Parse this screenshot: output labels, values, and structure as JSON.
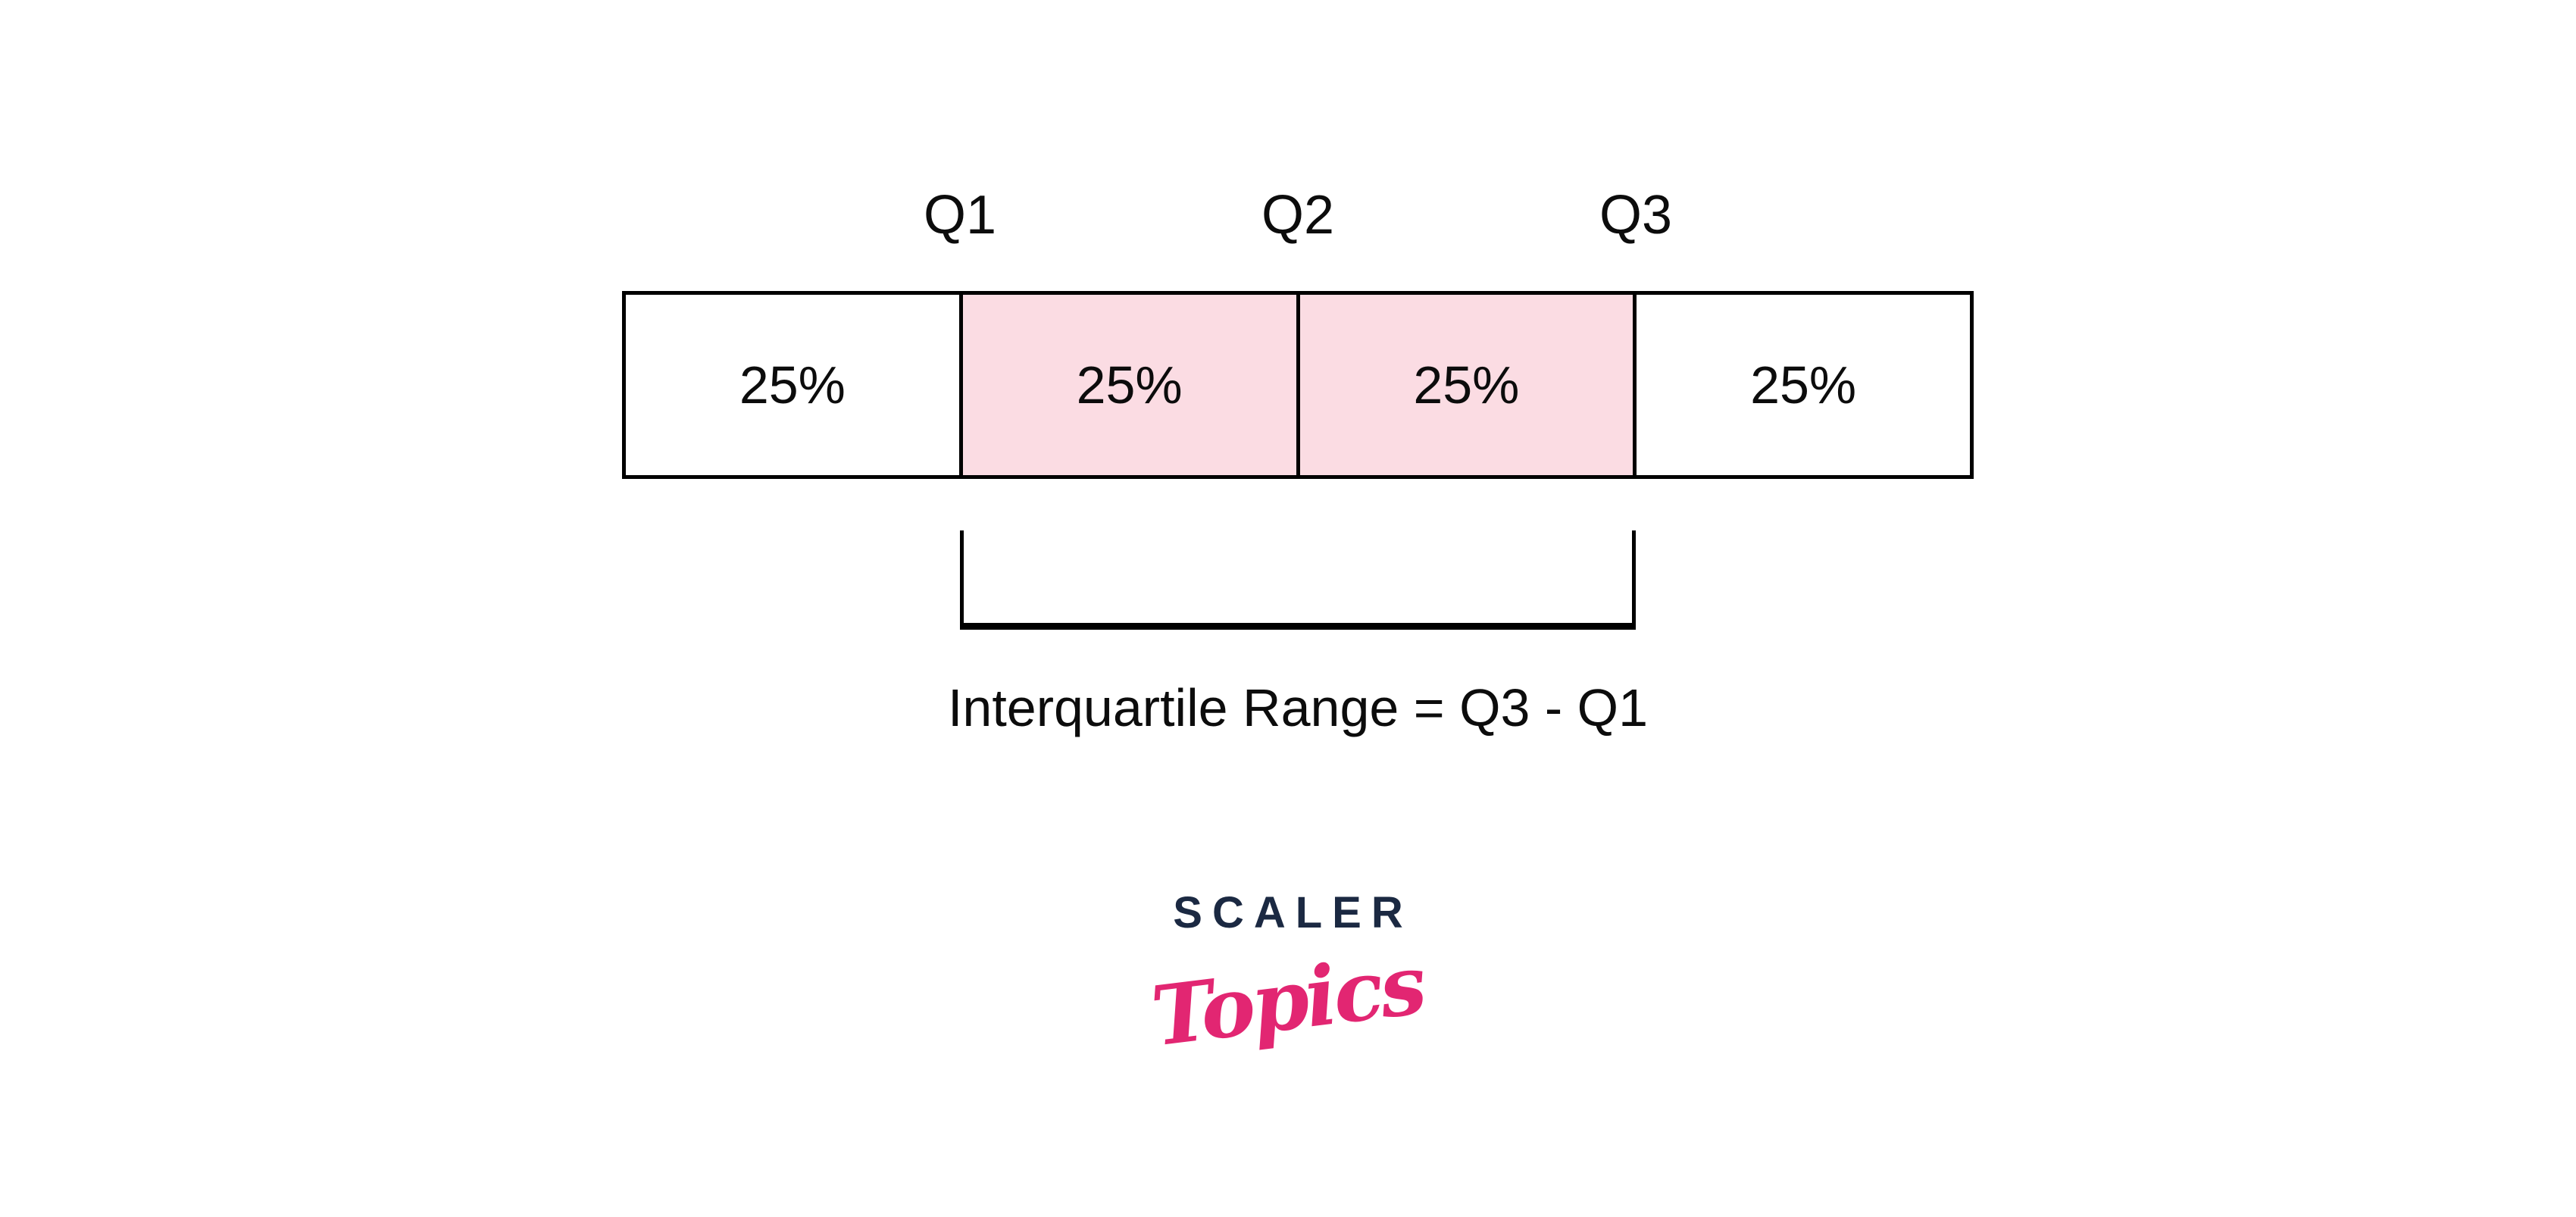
{
  "colors": {
    "highlight": "#FBDCE3",
    "line": "#000000",
    "ink": "#0c0c0c",
    "navy": "#1B2942",
    "pink": "#E22672",
    "bg": "#ffffff"
  },
  "diagram": {
    "q_labels": [
      "Q1",
      "Q2",
      "Q3"
    ],
    "segments": [
      {
        "label": "25%",
        "highlighted": false
      },
      {
        "label": "25%",
        "highlighted": true
      },
      {
        "label": "25%",
        "highlighted": true
      },
      {
        "label": "25%",
        "highlighted": false
      }
    ],
    "caption": "Interquartile Range = Q3 - Q1"
  },
  "logo": {
    "wordmark": "SCALER",
    "script": "Topics"
  }
}
